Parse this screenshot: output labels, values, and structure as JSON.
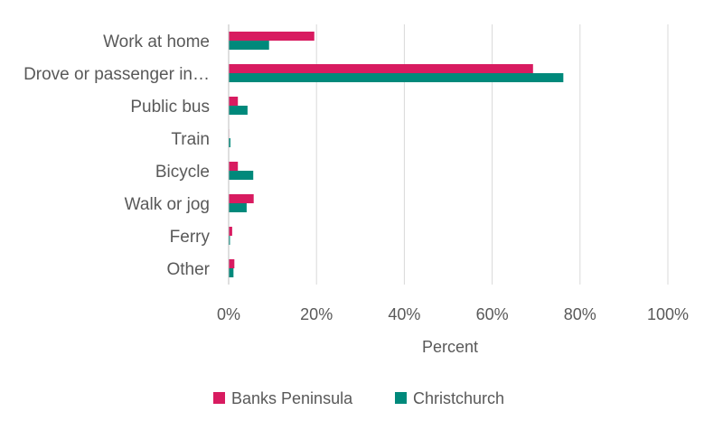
{
  "chart_data": {
    "type": "bar",
    "orientation": "horizontal",
    "categories": [
      "Work at home",
      "Drove or passenger in…",
      "Public bus",
      "Train",
      "Bicycle",
      "Walk or jog",
      "Ferry",
      "Other"
    ],
    "series": [
      {
        "name": "Banks Peninsula",
        "color": "#d81b60",
        "values": [
          19.5,
          69.3,
          2.1,
          0.1,
          2.1,
          5.7,
          0.8,
          1.3
        ]
      },
      {
        "name": "Christchurch",
        "color": "#00897b",
        "values": [
          9.2,
          76.2,
          4.3,
          0.4,
          5.6,
          4.1,
          0.3,
          1.1
        ]
      }
    ],
    "xlabel": "Percent",
    "xlim": [
      0,
      100
    ],
    "xticks": [
      "0%",
      "20%",
      "40%",
      "60%",
      "80%",
      "100%"
    ],
    "grid": true,
    "legend": "bottom"
  }
}
